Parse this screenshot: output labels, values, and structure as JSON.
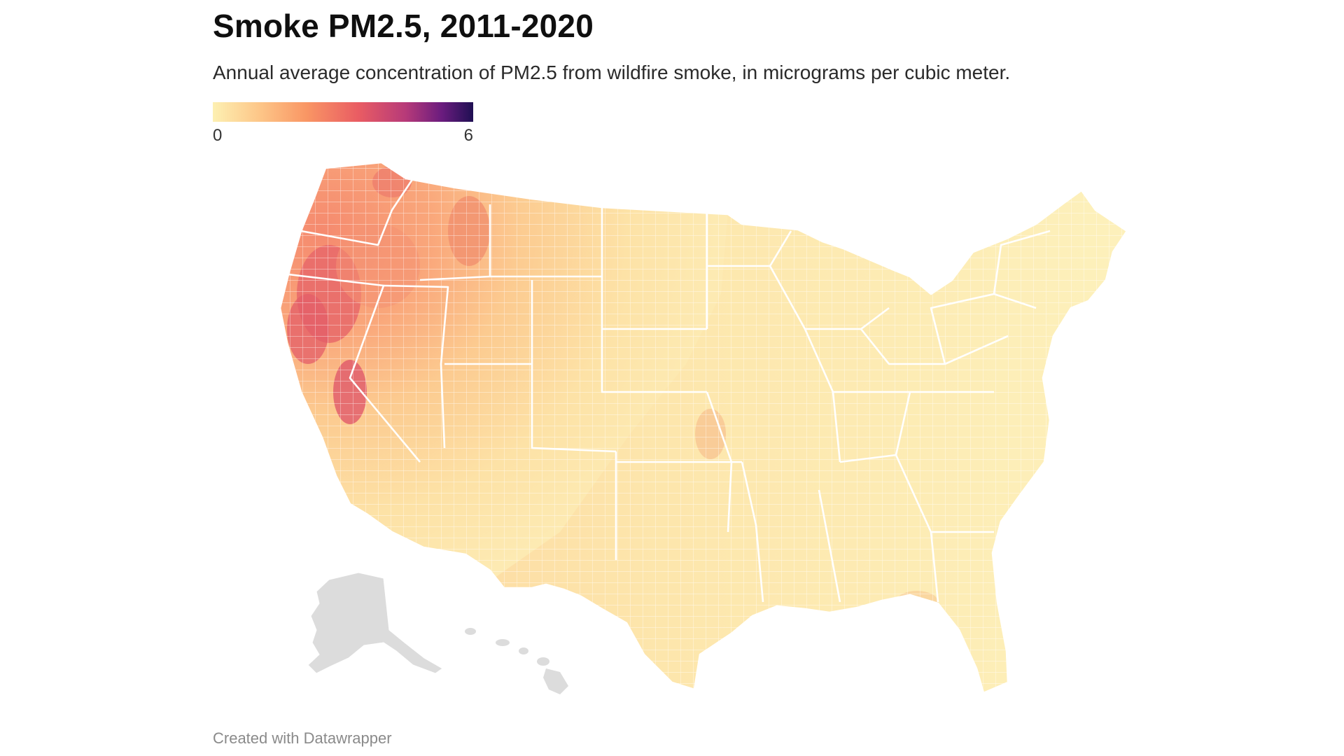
{
  "header": {
    "title": "Smoke PM2.5, 2011-2020",
    "subtitle": "Annual average concentration of PM2.5 from wildfire smoke, in micrograms per cubic meter."
  },
  "legend": {
    "min_label": "0",
    "max_label": "6",
    "min_value": 0,
    "max_value": 6,
    "colors": [
      "#fdf0b2",
      "#fdc688",
      "#f99664",
      "#e95c63",
      "#b73a79",
      "#6a1c7e",
      "#1f0f53"
    ]
  },
  "map": {
    "no_data_color": "#dcdcdc",
    "border_color": "#ffffff"
  },
  "footer": {
    "credit": "Created with Datawrapper"
  }
}
